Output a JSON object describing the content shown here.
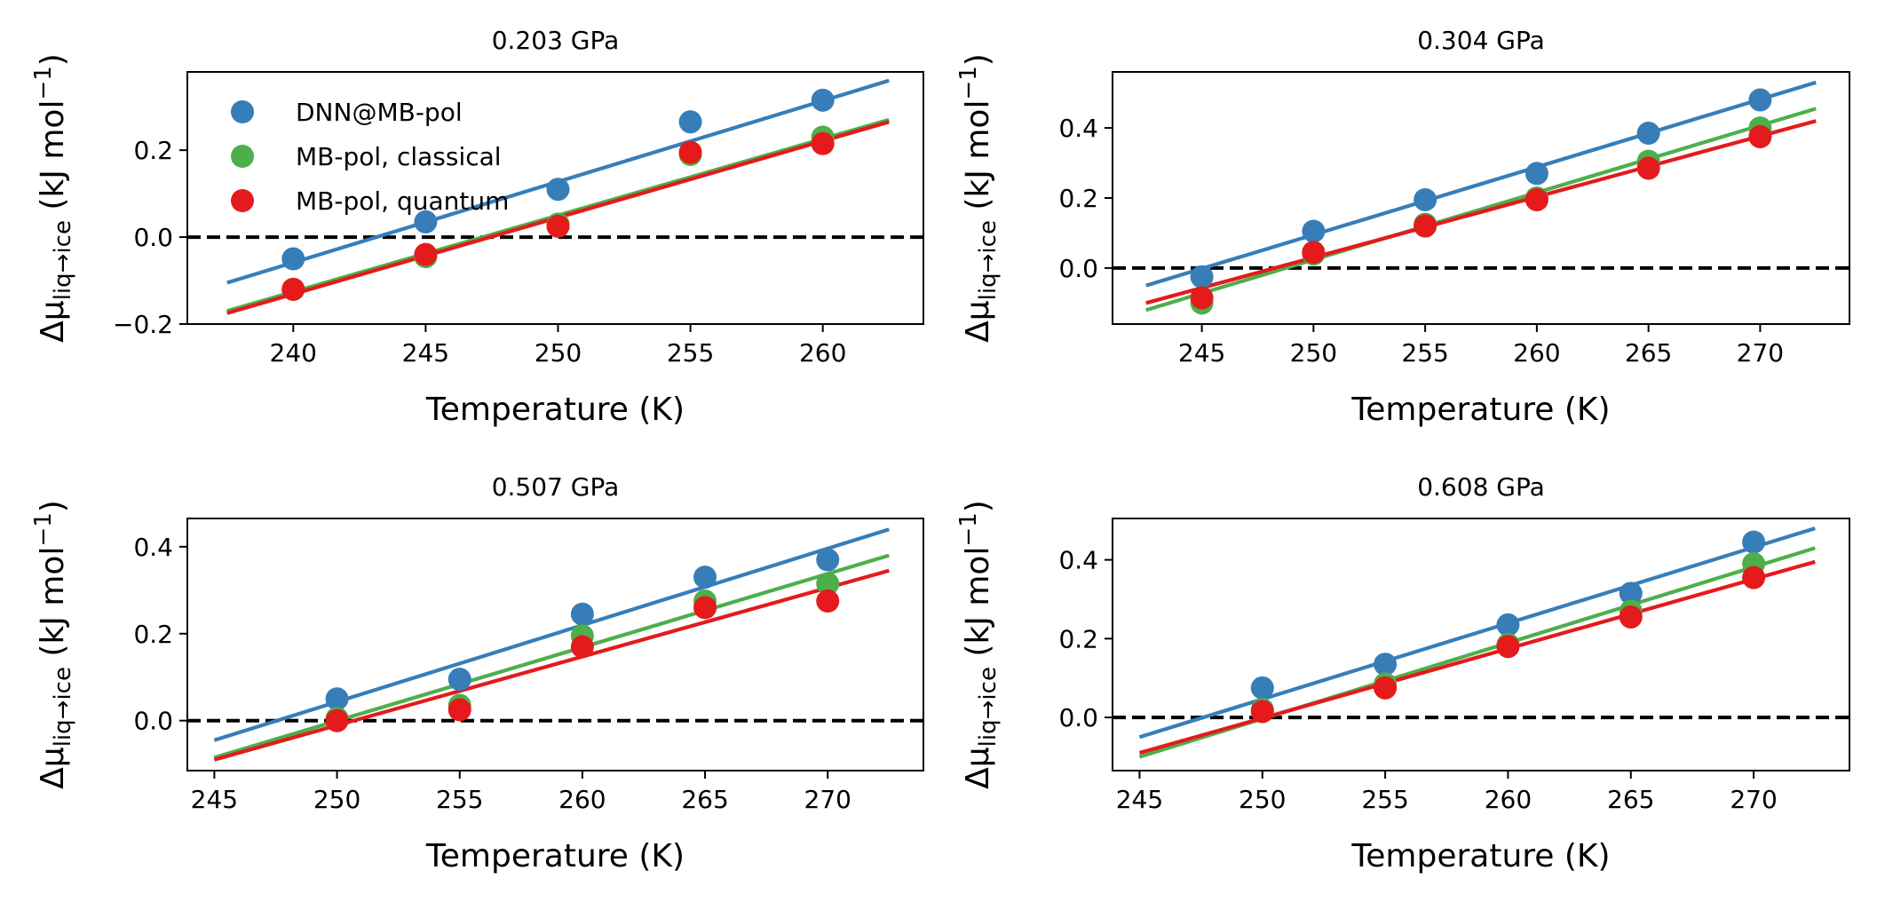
{
  "chart_data": [
    {
      "type": "scatter",
      "title": "0.203 GPa",
      "xlabel": "Temperature (K)",
      "ylabel_prefix": "Δμ",
      "ylabel_subscript": "liq→ice",
      "ylabel_units": "(kJ mol",
      "ylabel_exp": "−1",
      "ylabel_close": ")",
      "xlim": [
        236,
        263.8
      ],
      "ylim": [
        -0.2,
        0.38
      ],
      "xticks": [
        240,
        245,
        250,
        255,
        260
      ],
      "yticks": [
        -0.2,
        0.0,
        0.2
      ],
      "ytick_labels": [
        "−0.2",
        "0.0",
        "0.2"
      ],
      "reference_line_y": 0.0,
      "legend": {
        "placement": "upper-left"
      },
      "series": [
        {
          "name": "DNN@MB-pol",
          "color": "#377eb8",
          "x": [
            240,
            245,
            250,
            255,
            260
          ],
          "y": [
            -0.05,
            0.035,
            0.11,
            0.265,
            0.315
          ],
          "fit": {
            "x": [
              237.5,
              262.5
            ],
            "y": [
              -0.105,
              0.36
            ]
          }
        },
        {
          "name": "MB-pol, classical",
          "color": "#4daf4a",
          "x": [
            240,
            245,
            250,
            255,
            260
          ],
          "y": [
            -0.12,
            -0.045,
            0.03,
            0.19,
            0.23
          ],
          "fit": {
            "x": [
              237.5,
              262.5
            ],
            "y": [
              -0.17,
              0.27
            ]
          }
        },
        {
          "name": "MB-pol, quantum",
          "color": "#e41a1c",
          "x": [
            240,
            245,
            250,
            255,
            260
          ],
          "y": [
            -0.12,
            -0.04,
            0.025,
            0.195,
            0.215
          ],
          "fit": {
            "x": [
              237.5,
              262.5
            ],
            "y": [
              -0.175,
              0.265
            ]
          }
        }
      ]
    },
    {
      "type": "scatter",
      "title": "0.304 GPa",
      "xlabel": "Temperature (K)",
      "ylabel_prefix": "Δμ",
      "ylabel_subscript": "liq→ice",
      "ylabel_units": "(kJ mol",
      "ylabel_exp": "−1",
      "ylabel_close": ")",
      "xlim": [
        241,
        274
      ],
      "ylim": [
        -0.16,
        0.56
      ],
      "xticks": [
        245,
        250,
        255,
        260,
        265,
        270
      ],
      "yticks": [
        0.0,
        0.2,
        0.4
      ],
      "ytick_labels": [
        "0.0",
        "0.2",
        "0.4"
      ],
      "reference_line_y": 0.0,
      "series": [
        {
          "color": "#377eb8",
          "x": [
            245,
            250,
            255,
            260,
            265,
            270
          ],
          "y": [
            -0.025,
            0.105,
            0.195,
            0.27,
            0.385,
            0.48
          ],
          "fit": {
            "x": [
              242.5,
              272.5
            ],
            "y": [
              -0.05,
              0.53
            ]
          }
        },
        {
          "color": "#4daf4a",
          "x": [
            245,
            250,
            255,
            260,
            265,
            270
          ],
          "y": [
            -0.1,
            0.04,
            0.125,
            0.2,
            0.305,
            0.4
          ],
          "fit": {
            "x": [
              242.5,
              272.5
            ],
            "y": [
              -0.12,
              0.455
            ]
          }
        },
        {
          "color": "#e41a1c",
          "x": [
            245,
            250,
            255,
            260,
            265,
            270
          ],
          "y": [
            -0.085,
            0.045,
            0.12,
            0.195,
            0.285,
            0.375
          ],
          "fit": {
            "x": [
              242.5,
              272.5
            ],
            "y": [
              -0.1,
              0.42
            ]
          }
        }
      ]
    },
    {
      "type": "scatter",
      "title": "0.507 GPa",
      "xlabel": "Temperature (K)",
      "ylabel_prefix": "Δμ",
      "ylabel_subscript": "liq→ice",
      "ylabel_units": "(kJ mol",
      "ylabel_exp": "−1",
      "ylabel_close": ")",
      "xlim": [
        243.9,
        273.9
      ],
      "ylim": [
        -0.115,
        0.465
      ],
      "xticks": [
        245,
        250,
        255,
        260,
        265,
        270
      ],
      "yticks": [
        0.0,
        0.2,
        0.4
      ],
      "ytick_labels": [
        "0.0",
        "0.2",
        "0.4"
      ],
      "reference_line_y": 0.0,
      "series": [
        {
          "color": "#377eb8",
          "x": [
            250,
            255,
            260,
            265,
            270
          ],
          "y": [
            0.05,
            0.095,
            0.245,
            0.33,
            0.37
          ],
          "fit": {
            "x": [
              245,
              272.5
            ],
            "y": [
              -0.045,
              0.44
            ]
          }
        },
        {
          "color": "#4daf4a",
          "x": [
            250,
            255,
            260,
            265,
            270
          ],
          "y": [
            0.005,
            0.035,
            0.195,
            0.275,
            0.315
          ],
          "fit": {
            "x": [
              245,
              272.5
            ],
            "y": [
              -0.085,
              0.38
            ]
          }
        },
        {
          "color": "#e41a1c",
          "x": [
            250,
            255,
            260,
            265,
            270
          ],
          "y": [
            0.0,
            0.025,
            0.17,
            0.26,
            0.275
          ],
          "fit": {
            "x": [
              245,
              272.5
            ],
            "y": [
              -0.09,
              0.345
            ]
          }
        }
      ]
    },
    {
      "type": "scatter",
      "title": "0.608 GPa",
      "xlabel": "Temperature (K)",
      "ylabel_prefix": "Δμ",
      "ylabel_subscript": "liq→ice",
      "ylabel_units": "(kJ mol",
      "ylabel_exp": "−1",
      "ylabel_close": ")",
      "xlim": [
        243.9,
        273.9
      ],
      "ylim": [
        -0.135,
        0.505
      ],
      "xticks": [
        245,
        250,
        255,
        260,
        265,
        270
      ],
      "yticks": [
        0.0,
        0.2,
        0.4
      ],
      "ytick_labels": [
        "0.0",
        "0.2",
        "0.4"
      ],
      "reference_line_y": 0.0,
      "series": [
        {
          "color": "#377eb8",
          "x": [
            250,
            255,
            260,
            265,
            270
          ],
          "y": [
            0.075,
            0.135,
            0.235,
            0.315,
            0.445
          ],
          "fit": {
            "x": [
              245,
              272.5
            ],
            "y": [
              -0.05,
              0.48
            ]
          }
        },
        {
          "color": "#4daf4a",
          "x": [
            250,
            255,
            260,
            265,
            270
          ],
          "y": [
            0.02,
            0.085,
            0.185,
            0.27,
            0.39
          ],
          "fit": {
            "x": [
              245,
              272.5
            ],
            "y": [
              -0.1,
              0.43
            ]
          }
        },
        {
          "color": "#e41a1c",
          "x": [
            250,
            255,
            260,
            265,
            270
          ],
          "y": [
            0.015,
            0.075,
            0.18,
            0.255,
            0.355
          ],
          "fit": {
            "x": [
              245,
              272.5
            ],
            "y": [
              -0.09,
              0.395
            ]
          }
        }
      ]
    }
  ]
}
